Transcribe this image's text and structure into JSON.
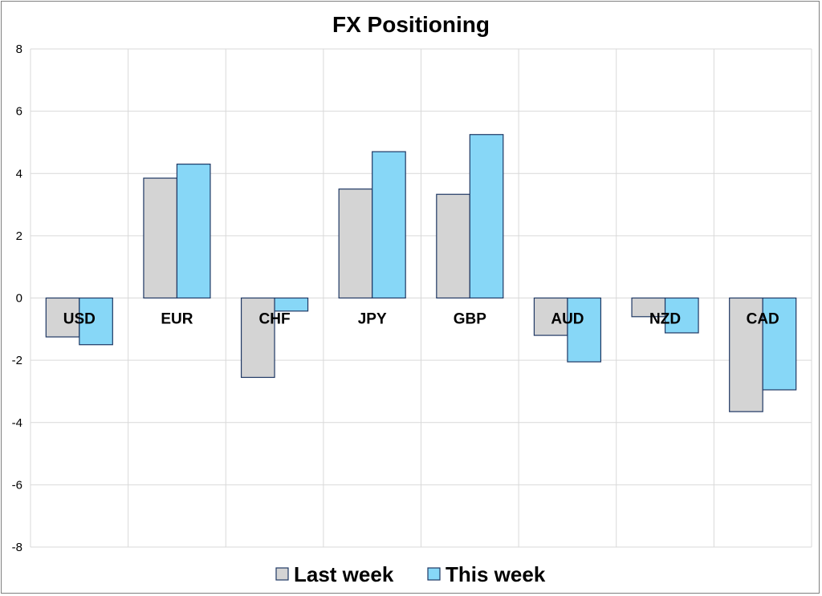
{
  "chart_data": {
    "type": "bar",
    "title": "FX Positioning",
    "categories": [
      "USD",
      "EUR",
      "CHF",
      "JPY",
      "GBP",
      "AUD",
      "NZD",
      "CAD"
    ],
    "series": [
      {
        "name": "Last week",
        "values": [
          -1.25,
          3.85,
          -2.55,
          3.5,
          3.33,
          -1.2,
          -0.6,
          -3.65
        ],
        "color": "#d4d4d4"
      },
      {
        "name": "This week",
        "values": [
          -1.5,
          4.3,
          -0.42,
          4.7,
          5.25,
          -2.05,
          -1.12,
          -2.95
        ],
        "color": "#87d7f7"
      }
    ],
    "yticks": [
      "8",
      "6",
      "4",
      "2",
      "0",
      "-2",
      "-4",
      "-6",
      "-8"
    ],
    "ylim": [
      -8,
      8
    ],
    "xlabel": "",
    "ylabel": "",
    "grid": true,
    "legend": "bottom",
    "bar_border_color": "#1f3864",
    "grid_color": "#d9d9d9"
  }
}
